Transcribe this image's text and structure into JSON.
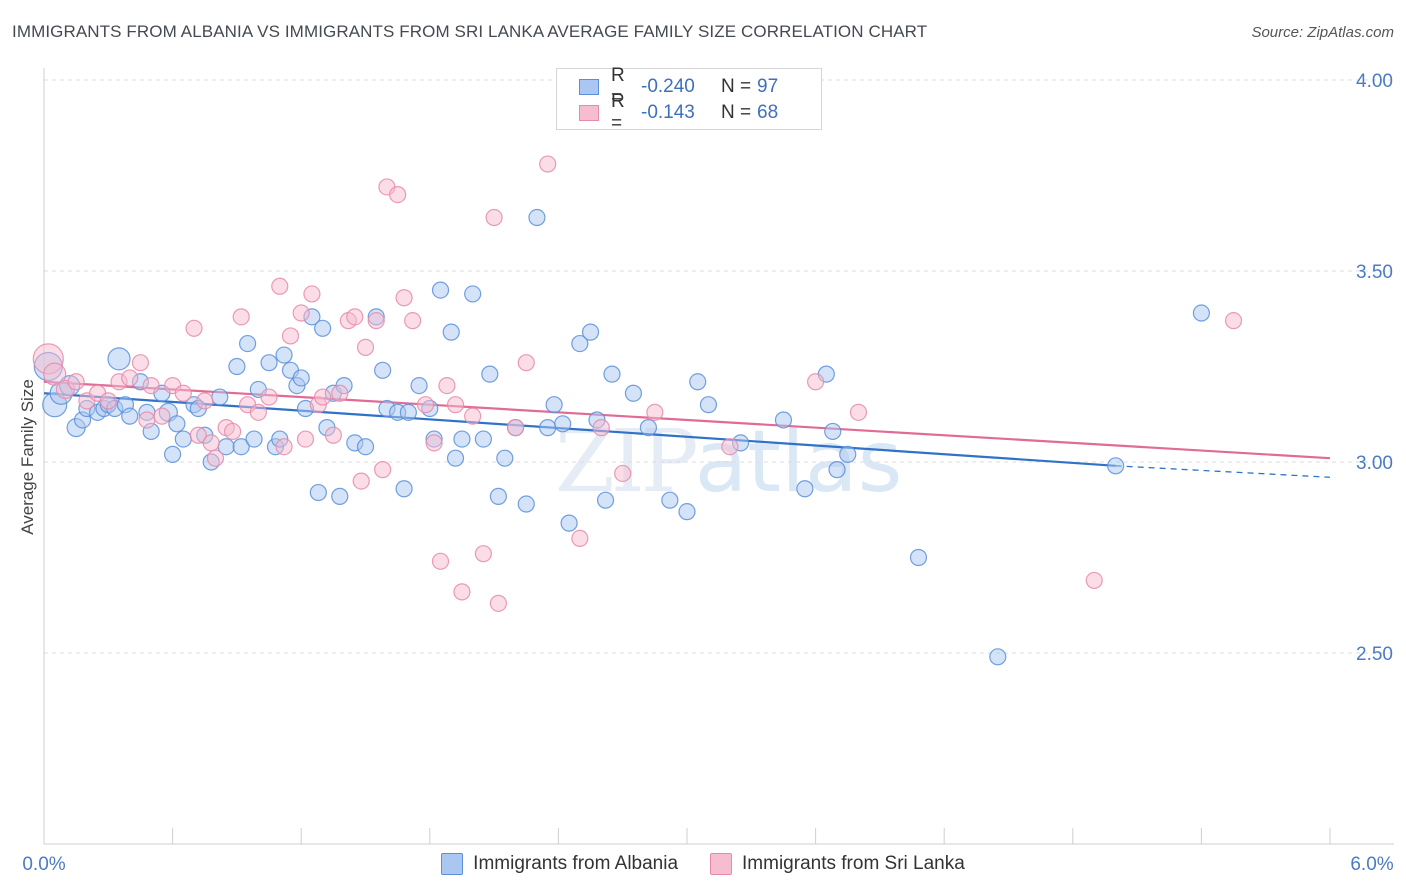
{
  "header": {
    "title": "IMMIGRANTS FROM ALBANIA VS IMMIGRANTS FROM SRI LANKA AVERAGE FAMILY SIZE CORRELATION CHART",
    "source": "Source: ZipAtlas.com"
  },
  "watermark": {
    "zip": "ZIP",
    "atlas": "atlas"
  },
  "legend": {
    "albania": {
      "r_label": "R =",
      "r_value": "-0.240",
      "n_label": "N =",
      "n_value": "97",
      "name": "Immigrants from Albania"
    },
    "srilanka": {
      "r_label": "R =",
      "r_value": "-0.143",
      "n_label": "N =",
      "n_value": "68",
      "name": "Immigrants from Sri Lanka"
    }
  },
  "colors": {
    "albania_fill": "#a9c7f0",
    "albania_stroke": "#5b8fdc",
    "albania_line": "#2f72c8",
    "srilanka_fill": "#f6bcd0",
    "srilanka_stroke": "#e88aac",
    "srilanka_line": "#e06b95"
  },
  "chart_data": {
    "type": "scatter",
    "title": "IMMIGRANTS FROM ALBANIA VS IMMIGRANTS FROM SRI LANKA AVERAGE FAMILY SIZE CORRELATION CHART",
    "xlabel": "",
    "ylabel": "Average Family Size",
    "xlim": [
      0,
      6
    ],
    "ylim": [
      2.1,
      4.05
    ],
    "x_tick_labels": [
      "0.0%",
      "6.0%"
    ],
    "y_ticks": [
      2.5,
      3.0,
      3.5,
      4.0
    ],
    "y_tick_labels": [
      "2.50",
      "3.00",
      "3.50",
      "4.00"
    ],
    "grid": "horizontal dashed",
    "legend": "top-center",
    "series": [
      {
        "name": "Immigrants from Albania",
        "trend": {
          "x": [
            0,
            5.0
          ],
          "y": [
            3.18,
            2.99
          ],
          "dashed_to": [
            6.0,
            2.96
          ]
        },
        "points": [
          [
            0.02,
            3.25,
            14
          ],
          [
            0.05,
            3.15,
            12
          ],
          [
            0.08,
            3.18,
            11
          ],
          [
            0.12,
            3.2,
            10
          ],
          [
            0.15,
            3.09,
            9
          ],
          [
            0.18,
            3.11,
            8
          ],
          [
            0.2,
            3.14,
            8
          ],
          [
            0.25,
            3.13,
            8
          ],
          [
            0.28,
            3.14,
            8
          ],
          [
            0.3,
            3.15,
            8
          ],
          [
            0.35,
            3.27,
            11
          ],
          [
            0.33,
            3.14,
            8
          ],
          [
            0.38,
            3.15,
            8
          ],
          [
            0.4,
            3.12,
            8
          ],
          [
            0.45,
            3.21,
            8
          ],
          [
            0.48,
            3.13,
            8
          ],
          [
            0.5,
            3.08,
            8
          ],
          [
            0.55,
            3.18,
            8
          ],
          [
            0.58,
            3.13,
            9
          ],
          [
            0.6,
            3.02,
            8
          ],
          [
            0.62,
            3.1,
            8
          ],
          [
            0.65,
            3.06,
            8
          ],
          [
            0.7,
            3.15,
            8
          ],
          [
            0.72,
            3.14,
            8
          ],
          [
            0.75,
            3.07,
            8
          ],
          [
            0.78,
            3.0,
            8
          ],
          [
            0.82,
            3.17,
            8
          ],
          [
            0.85,
            3.04,
            8
          ],
          [
            0.9,
            3.25,
            8
          ],
          [
            0.92,
            3.04,
            8
          ],
          [
            0.95,
            3.31,
            8
          ],
          [
            0.98,
            3.06,
            8
          ],
          [
            1.0,
            3.19,
            8
          ],
          [
            1.05,
            3.26,
            8
          ],
          [
            1.08,
            3.04,
            8
          ],
          [
            1.1,
            3.06,
            8
          ],
          [
            1.12,
            3.28,
            8
          ],
          [
            1.15,
            3.24,
            8
          ],
          [
            1.18,
            3.2,
            8
          ],
          [
            1.2,
            3.22,
            8
          ],
          [
            1.22,
            3.14,
            8
          ],
          [
            1.25,
            3.38,
            8
          ],
          [
            1.28,
            2.92,
            8
          ],
          [
            1.3,
            3.35,
            8
          ],
          [
            1.32,
            3.09,
            8
          ],
          [
            1.35,
            3.18,
            8
          ],
          [
            1.38,
            2.91,
            8
          ],
          [
            1.4,
            3.2,
            8
          ],
          [
            1.45,
            3.05,
            8
          ],
          [
            1.5,
            3.04,
            8
          ],
          [
            1.55,
            3.38,
            8
          ],
          [
            1.58,
            3.24,
            8
          ],
          [
            1.6,
            3.14,
            8
          ],
          [
            1.65,
            3.13,
            8
          ],
          [
            1.68,
            2.93,
            8
          ],
          [
            1.7,
            3.13,
            8
          ],
          [
            1.75,
            3.2,
            8
          ],
          [
            1.8,
            3.14,
            8
          ],
          [
            1.82,
            3.06,
            8
          ],
          [
            1.85,
            3.45,
            8
          ],
          [
            1.9,
            3.34,
            8
          ],
          [
            1.92,
            3.01,
            8
          ],
          [
            1.95,
            3.06,
            8
          ],
          [
            2.0,
            3.44,
            8
          ],
          [
            2.05,
            3.06,
            8
          ],
          [
            2.08,
            3.23,
            8
          ],
          [
            2.12,
            2.91,
            8
          ],
          [
            2.15,
            3.01,
            8
          ],
          [
            2.2,
            3.09,
            8
          ],
          [
            2.25,
            2.89,
            8
          ],
          [
            2.3,
            3.64,
            8
          ],
          [
            2.35,
            3.09,
            8
          ],
          [
            2.38,
            3.15,
            8
          ],
          [
            2.42,
            3.1,
            8
          ],
          [
            2.45,
            2.84,
            8
          ],
          [
            2.5,
            3.31,
            8
          ],
          [
            2.55,
            3.34,
            8
          ],
          [
            2.58,
            3.11,
            8
          ],
          [
            2.62,
            2.9,
            8
          ],
          [
            2.65,
            3.23,
            8
          ],
          [
            2.75,
            3.18,
            8
          ],
          [
            2.82,
            3.09,
            8
          ],
          [
            2.92,
            2.9,
            8
          ],
          [
            3.0,
            2.87,
            8
          ],
          [
            3.05,
            3.21,
            8
          ],
          [
            3.1,
            3.15,
            8
          ],
          [
            3.25,
            3.05,
            8
          ],
          [
            3.45,
            3.11,
            8
          ],
          [
            3.55,
            2.93,
            8
          ],
          [
            3.65,
            3.23,
            8
          ],
          [
            3.68,
            3.08,
            8
          ],
          [
            3.7,
            2.98,
            8
          ],
          [
            3.75,
            3.02,
            8
          ],
          [
            4.08,
            2.75,
            8
          ],
          [
            4.45,
            2.49,
            8
          ],
          [
            5.4,
            3.39,
            8
          ],
          [
            5.0,
            2.99,
            8
          ]
        ]
      },
      {
        "name": "Immigrants from Sri Lanka",
        "trend": {
          "x": [
            0,
            6.0
          ],
          "y": [
            3.21,
            3.01
          ]
        },
        "points": [
          [
            0.02,
            3.27,
            15
          ],
          [
            0.05,
            3.23,
            11
          ],
          [
            0.1,
            3.19,
            9
          ],
          [
            0.15,
            3.21,
            8
          ],
          [
            0.2,
            3.16,
            8
          ],
          [
            0.25,
            3.18,
            8
          ],
          [
            0.3,
            3.16,
            8
          ],
          [
            0.35,
            3.21,
            8
          ],
          [
            0.4,
            3.22,
            8
          ],
          [
            0.45,
            3.26,
            8
          ],
          [
            0.48,
            3.11,
            8
          ],
          [
            0.5,
            3.2,
            8
          ],
          [
            0.55,
            3.12,
            8
          ],
          [
            0.6,
            3.2,
            8
          ],
          [
            0.65,
            3.18,
            8
          ],
          [
            0.7,
            3.35,
            8
          ],
          [
            0.72,
            3.07,
            8
          ],
          [
            0.75,
            3.16,
            8
          ],
          [
            0.78,
            3.05,
            8
          ],
          [
            0.8,
            3.01,
            8
          ],
          [
            0.85,
            3.09,
            8
          ],
          [
            0.88,
            3.08,
            8
          ],
          [
            0.92,
            3.38,
            8
          ],
          [
            0.95,
            3.15,
            8
          ],
          [
            1.0,
            3.13,
            8
          ],
          [
            1.05,
            3.17,
            8
          ],
          [
            1.1,
            3.46,
            8
          ],
          [
            1.12,
            3.04,
            8
          ],
          [
            1.15,
            3.33,
            8
          ],
          [
            1.2,
            3.39,
            8
          ],
          [
            1.22,
            3.06,
            8
          ],
          [
            1.25,
            3.44,
            8
          ],
          [
            1.28,
            3.15,
            8
          ],
          [
            1.3,
            3.17,
            8
          ],
          [
            1.35,
            3.07,
            8
          ],
          [
            1.38,
            3.18,
            8
          ],
          [
            1.42,
            3.37,
            8
          ],
          [
            1.45,
            3.38,
            8
          ],
          [
            1.48,
            2.95,
            8
          ],
          [
            1.5,
            3.3,
            8
          ],
          [
            1.55,
            3.37,
            8
          ],
          [
            1.58,
            2.98,
            8
          ],
          [
            1.6,
            3.72,
            8
          ],
          [
            1.65,
            3.7,
            8
          ],
          [
            1.68,
            3.43,
            8
          ],
          [
            1.72,
            3.37,
            8
          ],
          [
            1.78,
            3.15,
            8
          ],
          [
            1.82,
            3.05,
            8
          ],
          [
            1.85,
            2.74,
            8
          ],
          [
            1.88,
            3.2,
            8
          ],
          [
            1.92,
            3.15,
            8
          ],
          [
            1.95,
            2.66,
            8
          ],
          [
            2.0,
            3.12,
            8
          ],
          [
            2.05,
            2.76,
            8
          ],
          [
            2.1,
            3.64,
            8
          ],
          [
            2.12,
            2.63,
            8
          ],
          [
            2.2,
            3.09,
            8
          ],
          [
            2.25,
            3.26,
            8
          ],
          [
            2.35,
            3.78,
            8
          ],
          [
            2.5,
            2.8,
            8
          ],
          [
            2.6,
            3.09,
            8
          ],
          [
            2.7,
            2.97,
            8
          ],
          [
            2.85,
            3.13,
            8
          ],
          [
            3.2,
            3.04,
            8
          ],
          [
            3.6,
            3.21,
            8
          ],
          [
            3.8,
            3.13,
            8
          ],
          [
            4.9,
            2.69,
            8
          ],
          [
            5.55,
            3.37,
            8
          ]
        ]
      }
    ]
  }
}
